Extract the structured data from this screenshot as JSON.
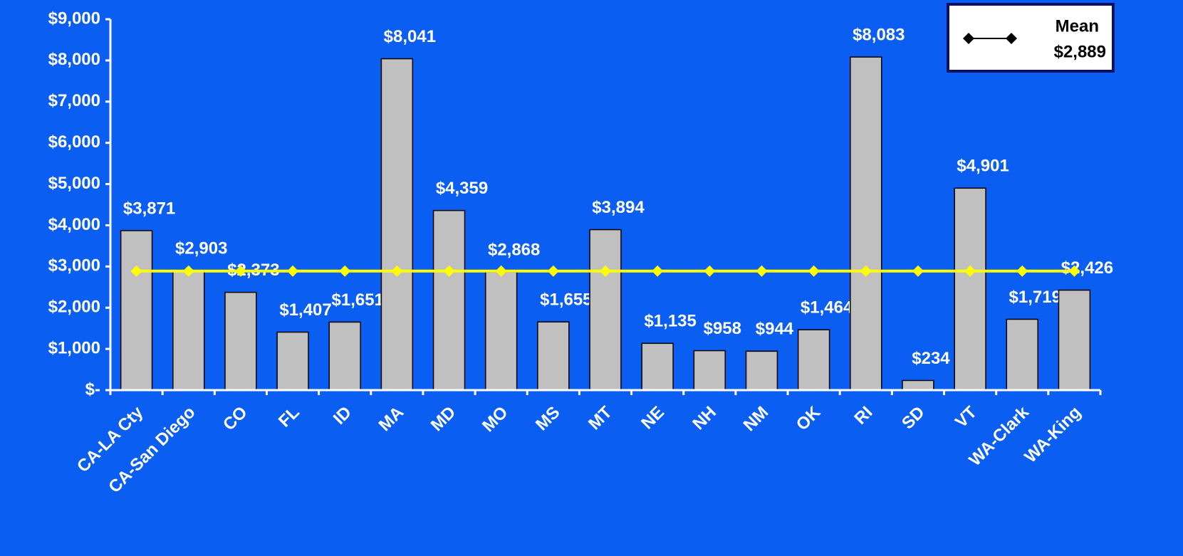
{
  "chart_data": {
    "type": "bar",
    "categories": [
      "CA-LA Cty",
      "CA-San Diego",
      "CO",
      "FL",
      "ID",
      "MA",
      "MD",
      "MO",
      "MS",
      "MT",
      "NE",
      "NH",
      "NM",
      "OK",
      "RI",
      "SD",
      "VT",
      "WA-Clark",
      "WA-King"
    ],
    "values": [
      3871,
      2903,
      2373,
      1407,
      1651,
      8041,
      4359,
      2868,
      1655,
      3894,
      1135,
      958,
      944,
      1464,
      8083,
      234,
      4901,
      1719,
      2426
    ],
    "value_labels": [
      "$3,871",
      "$2,903",
      "$2,373",
      "$1,407",
      "$1,651",
      "$8,041",
      "$4,359",
      "$2,868",
      "$1,655",
      "$3,894",
      "$1,135",
      "$958",
      "$944",
      "$1,464",
      "$8,083",
      "$234",
      "$4,901",
      "$1,719",
      "$2,426"
    ],
    "color": "#c0c0c0",
    "mean": {
      "name": "Mean",
      "value": 2889,
      "label": "$2,889",
      "color": "#ffff00",
      "legend_color": "#000000"
    },
    "ylim": [
      0,
      9000
    ],
    "yticks": [
      {
        "value": 0,
        "label": "$-"
      },
      {
        "value": 1000,
        "label": "$1,000"
      },
      {
        "value": 2000,
        "label": "$2,000"
      },
      {
        "value": 3000,
        "label": "$3,000"
      },
      {
        "value": 4000,
        "label": "$4,000"
      },
      {
        "value": 5000,
        "label": "$5,000"
      },
      {
        "value": 6000,
        "label": "$6,000"
      },
      {
        "value": 7000,
        "label": "$7,000"
      },
      {
        "value": 8000,
        "label": "$8,000"
      },
      {
        "value": 9000,
        "label": "$9,000"
      }
    ],
    "legend": "top-right"
  }
}
